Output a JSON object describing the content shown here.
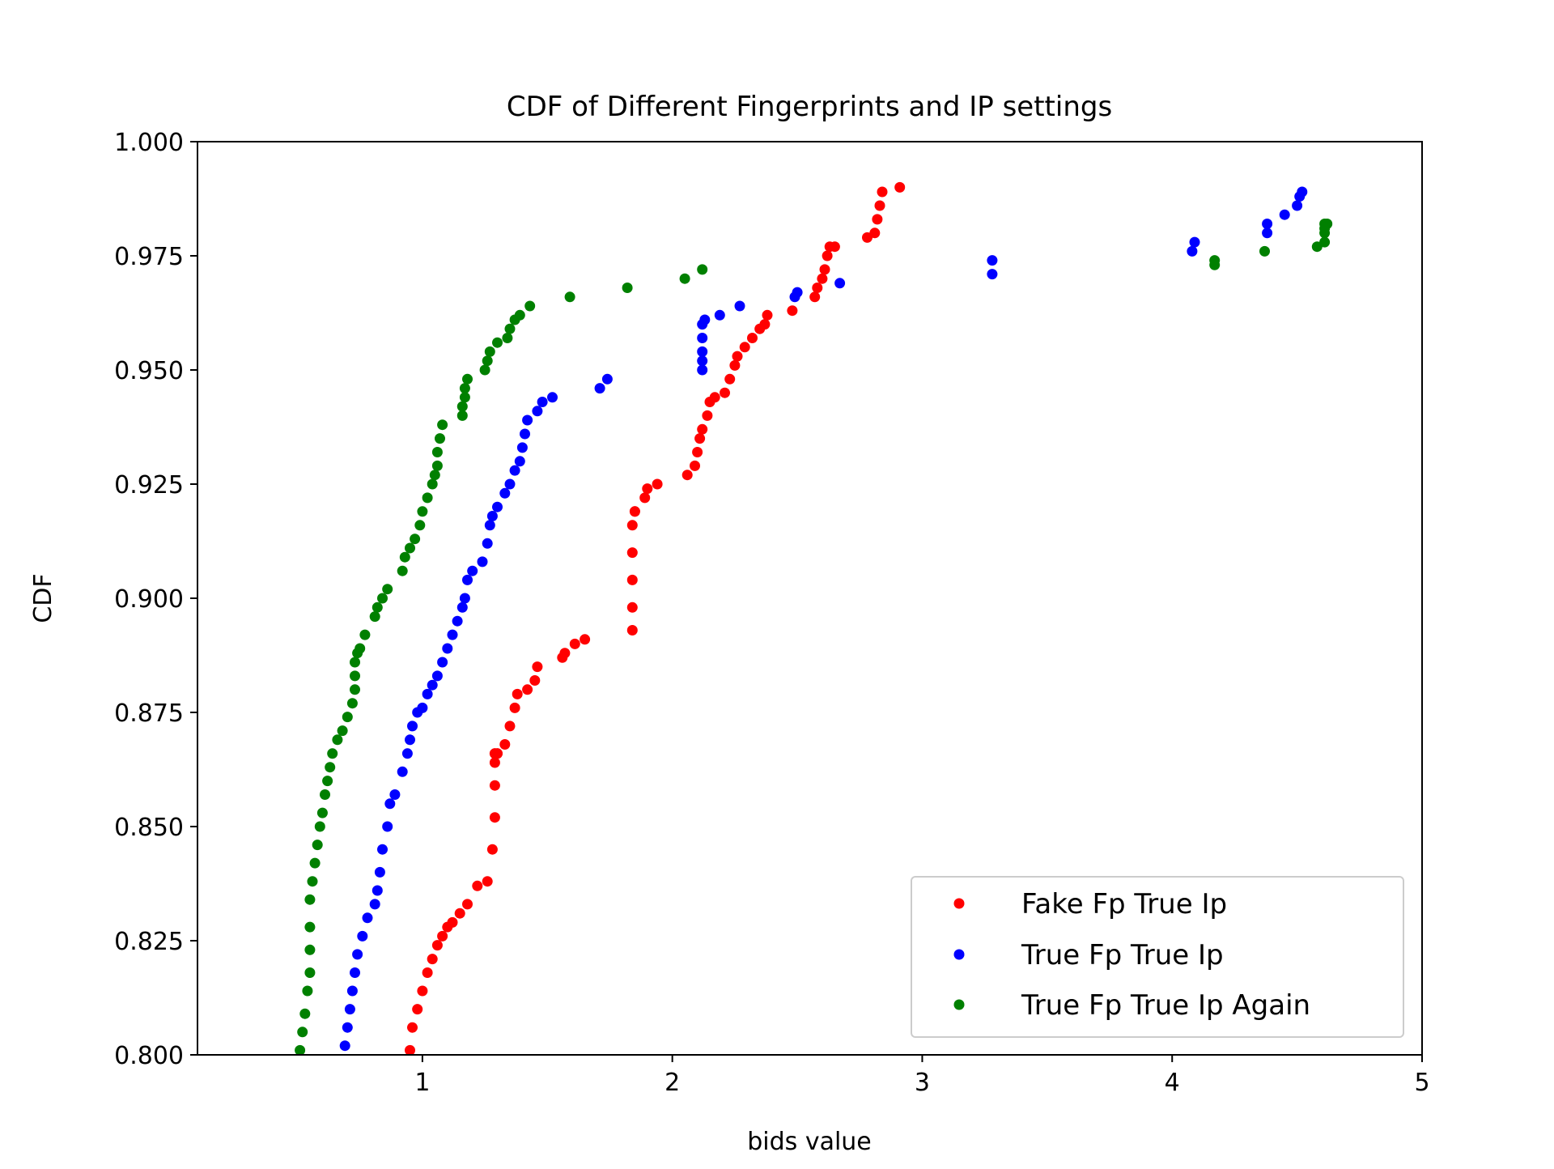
{
  "chart_data": {
    "type": "scatter",
    "title": "CDF of Different Fingerprints and IP settings",
    "xlabel": "bids value",
    "ylabel": "CDF",
    "xlim": [
      0.1,
      5.0
    ],
    "ylim": [
      0.8,
      1.0
    ],
    "x_ticks": [
      1,
      2,
      3,
      4,
      5
    ],
    "x_tick_labels": [
      "1",
      "2",
      "3",
      "4",
      "5"
    ],
    "y_ticks": [
      0.8,
      0.825,
      0.85,
      0.875,
      0.9,
      0.925,
      0.95,
      0.975,
      1.0
    ],
    "y_tick_labels": [
      "0.800",
      "0.825",
      "0.850",
      "0.875",
      "0.900",
      "0.925",
      "0.950",
      "0.975",
      "1.000"
    ],
    "grid": false,
    "legend_position": "lower-right",
    "series": [
      {
        "name": "Fake Fp True Ip",
        "color": "#ff0000",
        "x": [
          0.95,
          0.96,
          0.98,
          1.0,
          1.02,
          1.04,
          1.06,
          1.08,
          1.1,
          1.12,
          1.15,
          1.18,
          1.22,
          1.26,
          1.28,
          1.29,
          1.29,
          1.29,
          1.29,
          1.29,
          1.3,
          1.3,
          1.33,
          1.35,
          1.37,
          1.38,
          1.42,
          1.45,
          1.46,
          1.56,
          1.57,
          1.61,
          1.65,
          1.84,
          1.84,
          1.84,
          1.84,
          1.84,
          1.85,
          1.85,
          1.89,
          1.9,
          1.94,
          2.06,
          2.09,
          2.1,
          2.11,
          2.12,
          2.14,
          2.15,
          2.17,
          2.21,
          2.23,
          2.25,
          2.26,
          2.29,
          2.32,
          2.35,
          2.37,
          2.38,
          2.48,
          2.57,
          2.58,
          2.6,
          2.61,
          2.62,
          2.63,
          2.65,
          2.78,
          2.81,
          2.82,
          2.83,
          2.84,
          2.91
        ],
        "y": [
          0.801,
          0.806,
          0.81,
          0.814,
          0.818,
          0.821,
          0.824,
          0.826,
          0.828,
          0.829,
          0.831,
          0.833,
          0.837,
          0.838,
          0.845,
          0.852,
          0.859,
          0.864,
          0.866,
          0.866,
          0.866,
          0.866,
          0.868,
          0.872,
          0.876,
          0.879,
          0.88,
          0.882,
          0.885,
          0.887,
          0.888,
          0.89,
          0.891,
          0.893,
          0.898,
          0.904,
          0.91,
          0.916,
          0.919,
          0.919,
          0.922,
          0.924,
          0.925,
          0.927,
          0.929,
          0.932,
          0.935,
          0.937,
          0.94,
          0.943,
          0.944,
          0.945,
          0.948,
          0.951,
          0.953,
          0.955,
          0.957,
          0.959,
          0.96,
          0.962,
          0.963,
          0.966,
          0.968,
          0.97,
          0.972,
          0.975,
          0.977,
          0.977,
          0.979,
          0.98,
          0.983,
          0.986,
          0.989,
          0.99
        ]
      },
      {
        "name": "True Fp True Ip",
        "color": "#0000ff",
        "x": [
          0.69,
          0.7,
          0.71,
          0.72,
          0.73,
          0.74,
          0.76,
          0.78,
          0.81,
          0.82,
          0.83,
          0.84,
          0.86,
          0.87,
          0.89,
          0.92,
          0.94,
          0.95,
          0.96,
          0.98,
          1.0,
          1.02,
          1.04,
          1.06,
          1.08,
          1.1,
          1.12,
          1.14,
          1.16,
          1.17,
          1.18,
          1.2,
          1.24,
          1.26,
          1.27,
          1.28,
          1.3,
          1.33,
          1.35,
          1.37,
          1.39,
          1.4,
          1.41,
          1.42,
          1.46,
          1.48,
          1.52,
          1.71,
          1.74,
          2.12,
          2.12,
          2.12,
          2.12,
          2.12,
          2.13,
          2.19,
          2.27,
          2.49,
          2.5,
          2.67,
          3.28,
          3.28,
          4.08,
          4.09,
          4.38,
          4.38,
          4.45,
          4.5,
          4.51,
          4.52
        ],
        "y": [
          0.802,
          0.806,
          0.81,
          0.814,
          0.818,
          0.822,
          0.826,
          0.83,
          0.833,
          0.836,
          0.84,
          0.845,
          0.85,
          0.855,
          0.857,
          0.862,
          0.866,
          0.869,
          0.872,
          0.875,
          0.876,
          0.879,
          0.881,
          0.883,
          0.886,
          0.889,
          0.892,
          0.895,
          0.898,
          0.9,
          0.904,
          0.906,
          0.908,
          0.912,
          0.916,
          0.918,
          0.92,
          0.923,
          0.925,
          0.928,
          0.93,
          0.933,
          0.936,
          0.939,
          0.941,
          0.943,
          0.944,
          0.946,
          0.948,
          0.95,
          0.952,
          0.954,
          0.957,
          0.96,
          0.961,
          0.962,
          0.964,
          0.966,
          0.967,
          0.969,
          0.971,
          0.974,
          0.976,
          0.978,
          0.98,
          0.982,
          0.984,
          0.986,
          0.988,
          0.989
        ]
      },
      {
        "name": "True Fp True Ip Again",
        "color": "#008000",
        "x": [
          0.51,
          0.52,
          0.53,
          0.54,
          0.55,
          0.55,
          0.55,
          0.55,
          0.56,
          0.57,
          0.58,
          0.59,
          0.6,
          0.61,
          0.62,
          0.63,
          0.64,
          0.66,
          0.68,
          0.7,
          0.72,
          0.73,
          0.73,
          0.73,
          0.74,
          0.75,
          0.77,
          0.81,
          0.82,
          0.84,
          0.86,
          0.92,
          0.93,
          0.95,
          0.97,
          0.99,
          1.0,
          1.02,
          1.04,
          1.05,
          1.06,
          1.06,
          1.07,
          1.08,
          1.16,
          1.16,
          1.17,
          1.17,
          1.18,
          1.25,
          1.26,
          1.27,
          1.3,
          1.34,
          1.35,
          1.37,
          1.39,
          1.43,
          1.59,
          1.82,
          2.05,
          2.12,
          4.17,
          4.17,
          4.37,
          4.58,
          4.61,
          4.61,
          4.61,
          4.61,
          4.62
        ],
        "y": [
          0.801,
          0.805,
          0.809,
          0.814,
          0.818,
          0.823,
          0.828,
          0.834,
          0.838,
          0.842,
          0.846,
          0.85,
          0.853,
          0.857,
          0.86,
          0.863,
          0.866,
          0.869,
          0.871,
          0.874,
          0.877,
          0.88,
          0.883,
          0.886,
          0.888,
          0.889,
          0.892,
          0.896,
          0.898,
          0.9,
          0.902,
          0.906,
          0.909,
          0.911,
          0.913,
          0.916,
          0.919,
          0.922,
          0.925,
          0.927,
          0.929,
          0.932,
          0.935,
          0.938,
          0.94,
          0.942,
          0.944,
          0.946,
          0.948,
          0.95,
          0.952,
          0.954,
          0.956,
          0.957,
          0.959,
          0.961,
          0.962,
          0.964,
          0.966,
          0.968,
          0.97,
          0.972,
          0.973,
          0.974,
          0.976,
          0.977,
          0.978,
          0.98,
          0.981,
          0.982,
          0.982
        ]
      }
    ]
  }
}
